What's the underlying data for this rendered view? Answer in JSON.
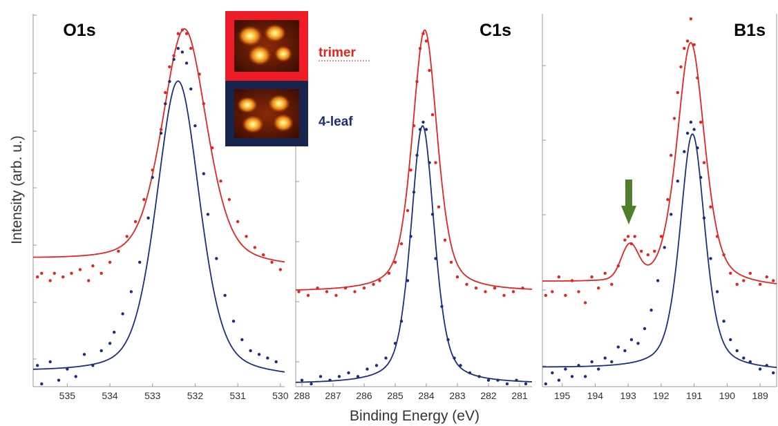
{
  "ylabel": "Intensity (arb. u.)",
  "xlabel": "Binding Energy (eV)",
  "legend": [
    {
      "label": "trimer",
      "color": "#e8221e"
    },
    {
      "label": "4-leaf",
      "color": "#1a2e80"
    }
  ],
  "colors": {
    "trimer": "#e8221e",
    "four_leaf": "#1a2e80",
    "arrow": "#4f7f2a",
    "inset_red": "#ee1c24",
    "inset_navy": "#18234e"
  },
  "chart_data": [
    {
      "type": "scatter",
      "title": "O1s",
      "x_reversed": true,
      "xlim": [
        535.8,
        529.9
      ],
      "ylim": [
        0,
        1
      ],
      "xticks": [
        535,
        534,
        533,
        532,
        531,
        530
      ],
      "yaxis_ticks_labelled": false,
      "series": [
        {
          "name": "trimer",
          "fit": {
            "center": 532.25,
            "width": 0.62,
            "eta": 0.4,
            "baseline": 0.314,
            "slope": 0.022,
            "amplitude": 0.64
          },
          "points": [
            [
              535.7,
              0.29
            ],
            [
              535.6,
              0.3
            ],
            [
              535.4,
              0.28
            ],
            [
              535.3,
              0.3
            ],
            [
              535.1,
              0.29
            ],
            [
              534.9,
              0.3
            ],
            [
              534.7,
              0.31
            ],
            [
              534.5,
              0.28
            ],
            [
              534.4,
              0.32
            ],
            [
              534.2,
              0.3
            ],
            [
              534.0,
              0.33
            ],
            [
              533.8,
              0.36
            ],
            [
              533.6,
              0.4
            ],
            [
              533.4,
              0.44
            ],
            [
              533.2,
              0.5
            ],
            [
              533.0,
              0.58
            ],
            [
              532.8,
              0.69
            ],
            [
              532.7,
              0.79
            ],
            [
              532.6,
              0.86
            ],
            [
              532.5,
              0.89
            ],
            [
              532.4,
              0.95
            ],
            [
              532.3,
              0.96
            ],
            [
              532.2,
              0.95
            ],
            [
              532.1,
              0.91
            ],
            [
              531.9,
              0.84
            ],
            [
              531.8,
              0.76
            ],
            [
              531.6,
              0.64
            ],
            [
              531.4,
              0.55
            ],
            [
              531.2,
              0.5
            ],
            [
              531.0,
              0.44
            ],
            [
              530.8,
              0.4
            ],
            [
              530.6,
              0.37
            ],
            [
              530.4,
              0.35
            ],
            [
              530.2,
              0.33
            ],
            [
              530.0,
              0.31
            ]
          ]
        },
        {
          "name": "4-leaf",
          "fit": {
            "center": 532.4,
            "width": 0.6,
            "eta": 0.4,
            "baseline": 0.015,
            "slope": 0.015,
            "amplitude": 0.8
          },
          "points": [
            [
              535.7,
              0.05
            ],
            [
              535.6,
              0.0
            ],
            [
              535.4,
              0.06
            ],
            [
              535.2,
              0.01
            ],
            [
              535.0,
              0.04
            ],
            [
              534.8,
              0.02
            ],
            [
              534.6,
              0.08
            ],
            [
              534.4,
              0.05
            ],
            [
              534.2,
              0.09
            ],
            [
              534.0,
              0.11
            ],
            [
              533.9,
              0.14
            ],
            [
              533.7,
              0.19
            ],
            [
              533.5,
              0.25
            ],
            [
              533.3,
              0.33
            ],
            [
              533.1,
              0.45
            ],
            [
              533.0,
              0.56
            ],
            [
              532.8,
              0.68
            ],
            [
              532.7,
              0.76
            ],
            [
              532.6,
              0.82
            ],
            [
              532.5,
              0.88
            ],
            [
              532.4,
              0.91
            ],
            [
              532.3,
              0.9
            ],
            [
              532.2,
              0.87
            ],
            [
              532.1,
              0.8
            ],
            [
              532.0,
              0.7
            ],
            [
              531.8,
              0.57
            ],
            [
              531.7,
              0.46
            ],
            [
              531.5,
              0.34
            ],
            [
              531.3,
              0.24
            ],
            [
              531.1,
              0.17
            ],
            [
              530.9,
              0.12
            ],
            [
              530.7,
              0.09
            ],
            [
              530.5,
              0.08
            ],
            [
              530.3,
              0.07
            ],
            [
              530.1,
              0.06
            ]
          ]
        }
      ]
    },
    {
      "type": "scatter",
      "title": "C1s",
      "x_reversed": true,
      "xlim": [
        288.2,
        280.6
      ],
      "ylim": [
        0,
        1
      ],
      "xticks": [
        288,
        287,
        286,
        285,
        284,
        283,
        282,
        281
      ],
      "yaxis_ticks_labelled": false,
      "series": [
        {
          "name": "trimer",
          "fit": {
            "center": 284.05,
            "width": 0.48,
            "eta": 0.5,
            "baseline": 0.25,
            "slope": 0.0,
            "amplitude": 0.71
          },
          "points": [
            [
              288.1,
              0.25
            ],
            [
              287.8,
              0.24
            ],
            [
              287.5,
              0.26
            ],
            [
              287.2,
              0.25
            ],
            [
              286.9,
              0.24
            ],
            [
              286.6,
              0.26
            ],
            [
              286.3,
              0.25
            ],
            [
              286.0,
              0.26
            ],
            [
              285.7,
              0.27
            ],
            [
              285.5,
              0.28
            ],
            [
              285.2,
              0.3
            ],
            [
              285.0,
              0.33
            ],
            [
              284.8,
              0.38
            ],
            [
              284.6,
              0.47
            ],
            [
              284.5,
              0.58
            ],
            [
              284.4,
              0.7
            ],
            [
              284.3,
              0.82
            ],
            [
              284.2,
              0.91
            ],
            [
              284.1,
              0.95
            ],
            [
              284.0,
              0.93
            ],
            [
              283.9,
              0.85
            ],
            [
              283.8,
              0.73
            ],
            [
              283.7,
              0.6
            ],
            [
              283.6,
              0.48
            ],
            [
              283.4,
              0.39
            ],
            [
              283.2,
              0.33
            ],
            [
              283.0,
              0.29
            ],
            [
              282.7,
              0.27
            ],
            [
              282.4,
              0.26
            ],
            [
              282.1,
              0.25
            ],
            [
              281.8,
              0.26
            ],
            [
              281.5,
              0.24
            ],
            [
              281.2,
              0.25
            ],
            [
              280.9,
              0.26
            ]
          ]
        },
        {
          "name": "4-leaf",
          "fit": {
            "center": 284.12,
            "width": 0.45,
            "eta": 0.5,
            "baseline": 0.0,
            "slope": 0.0,
            "amplitude": 0.7
          },
          "points": [
            [
              288.0,
              0.01
            ],
            [
              287.7,
              0.0
            ],
            [
              287.4,
              0.02
            ],
            [
              287.1,
              0.01
            ],
            [
              286.8,
              0.02
            ],
            [
              286.5,
              0.03
            ],
            [
              286.2,
              0.02
            ],
            [
              285.9,
              0.04
            ],
            [
              285.6,
              0.05
            ],
            [
              285.3,
              0.07
            ],
            [
              285.0,
              0.11
            ],
            [
              284.8,
              0.17
            ],
            [
              284.6,
              0.28
            ],
            [
              284.5,
              0.4
            ],
            [
              284.4,
              0.52
            ],
            [
              284.3,
              0.62
            ],
            [
              284.2,
              0.69
            ],
            [
              284.1,
              0.71
            ],
            [
              284.0,
              0.69
            ],
            [
              283.9,
              0.6
            ],
            [
              283.8,
              0.46
            ],
            [
              283.7,
              0.34
            ],
            [
              283.5,
              0.21
            ],
            [
              283.3,
              0.12
            ],
            [
              283.1,
              0.07
            ],
            [
              282.9,
              0.05
            ],
            [
              282.6,
              0.03
            ],
            [
              282.3,
              0.02
            ],
            [
              282.0,
              0.01
            ],
            [
              281.7,
              0.01
            ],
            [
              281.4,
              0.0
            ],
            [
              281.1,
              0.01
            ],
            [
              280.8,
              0.0
            ]
          ]
        }
      ]
    },
    {
      "type": "scatter",
      "title": "B1s",
      "x_reversed": true,
      "xlim": [
        195.6,
        188.5
      ],
      "ylim": [
        0,
        1
      ],
      "xticks": [
        195,
        194,
        193,
        192,
        191,
        190,
        189
      ],
      "yaxis_ticks_labelled": false,
      "annotations": [
        {
          "type": "arrow",
          "x": 193.0,
          "color": "#4f7f2a"
        }
      ],
      "series": [
        {
          "name": "trimer",
          "fit": {
            "center": 191.1,
            "width": 0.5,
            "eta": 0.5,
            "baseline": 0.26,
            "slope": 0.015,
            "amplitude": 0.66,
            "shoulder": {
              "center": 192.95,
              "width": 0.3,
              "amplitude": 0.09
            }
          },
          "points": [
            [
              195.5,
              0.24
            ],
            [
              195.3,
              0.25
            ],
            [
              195.1,
              0.29
            ],
            [
              194.9,
              0.24
            ],
            [
              194.7,
              0.28
            ],
            [
              194.5,
              0.25
            ],
            [
              194.3,
              0.22
            ],
            [
              194.1,
              0.29
            ],
            [
              193.9,
              0.26
            ],
            [
              193.7,
              0.3
            ],
            [
              193.5,
              0.27
            ],
            [
              193.3,
              0.32
            ],
            [
              193.1,
              0.39
            ],
            [
              193.0,
              0.4
            ],
            [
              192.9,
              0.38
            ],
            [
              192.8,
              0.4
            ],
            [
              192.6,
              0.36
            ],
            [
              192.4,
              0.35
            ],
            [
              192.2,
              0.36
            ],
            [
              192.0,
              0.4
            ],
            [
              191.8,
              0.5
            ],
            [
              191.7,
              0.62
            ],
            [
              191.6,
              0.72
            ],
            [
              191.5,
              0.79
            ],
            [
              191.4,
              0.86
            ],
            [
              191.3,
              0.91
            ],
            [
              191.2,
              0.93
            ],
            [
              191.1,
              0.99
            ],
            [
              191.0,
              0.92
            ],
            [
              190.9,
              0.83
            ],
            [
              190.8,
              0.71
            ],
            [
              190.7,
              0.6
            ],
            [
              190.5,
              0.48
            ],
            [
              190.3,
              0.4
            ],
            [
              190.1,
              0.35
            ],
            [
              189.9,
              0.3
            ],
            [
              189.7,
              0.27
            ],
            [
              189.5,
              0.28
            ],
            [
              189.3,
              0.3
            ],
            [
              189.0,
              0.27
            ],
            [
              188.8,
              0.29
            ],
            [
              188.6,
              0.28
            ]
          ]
        },
        {
          "name": "4-leaf",
          "fit": {
            "center": 191.05,
            "width": 0.45,
            "eta": 0.5,
            "baseline": 0.035,
            "slope": 0.008,
            "amplitude": 0.64
          },
          "points": [
            [
              195.5,
              0.0
            ],
            [
              195.3,
              0.03
            ],
            [
              195.1,
              0.01
            ],
            [
              194.9,
              0.04
            ],
            [
              194.7,
              0.02
            ],
            [
              194.5,
              0.05
            ],
            [
              194.3,
              0.02
            ],
            [
              194.1,
              0.06
            ],
            [
              193.9,
              0.04
            ],
            [
              193.7,
              0.07
            ],
            [
              193.5,
              0.06
            ],
            [
              193.3,
              0.1
            ],
            [
              193.1,
              0.09
            ],
            [
              192.9,
              0.12
            ],
            [
              192.7,
              0.11
            ],
            [
              192.5,
              0.15
            ],
            [
              192.3,
              0.2
            ],
            [
              192.1,
              0.28
            ],
            [
              191.9,
              0.37
            ],
            [
              191.7,
              0.46
            ],
            [
              191.5,
              0.55
            ],
            [
              191.3,
              0.63
            ],
            [
              191.2,
              0.68
            ],
            [
              191.1,
              0.71
            ],
            [
              191.0,
              0.69
            ],
            [
              190.9,
              0.64
            ],
            [
              190.8,
              0.56
            ],
            [
              190.7,
              0.45
            ],
            [
              190.5,
              0.34
            ],
            [
              190.3,
              0.25
            ],
            [
              190.1,
              0.17
            ],
            [
              189.9,
              0.12
            ],
            [
              189.7,
              0.09
            ],
            [
              189.5,
              0.07
            ],
            [
              189.3,
              0.06
            ],
            [
              189.0,
              0.04
            ],
            [
              188.8,
              0.05
            ],
            [
              188.6,
              0.03
            ]
          ]
        }
      ]
    }
  ]
}
